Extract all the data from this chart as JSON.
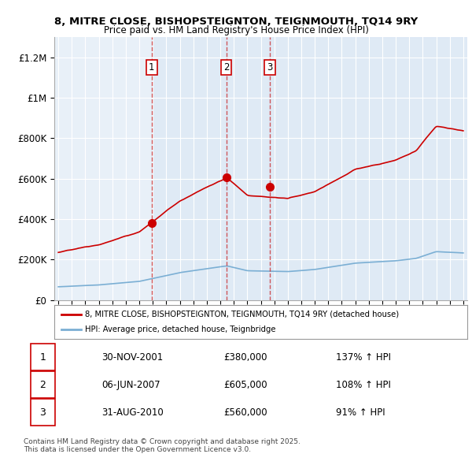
{
  "title": "8, MITRE CLOSE, BISHOPSTEIGNTON, TEIGNMOUTH, TQ14 9RY",
  "subtitle": "Price paid vs. HM Land Registry's House Price Index (HPI)",
  "ylabel_ticks": [
    "£0",
    "£200K",
    "£400K",
    "£600K",
    "£800K",
    "£1M",
    "£1.2M"
  ],
  "ytick_values": [
    0,
    200000,
    400000,
    600000,
    800000,
    1000000,
    1200000
  ],
  "ylim": [
    0,
    1300000
  ],
  "xlim_start": 1994.7,
  "xlim_end": 2025.3,
  "red_line_color": "#cc0000",
  "blue_line_color": "#7bafd4",
  "shade_color": "#ddeeff",
  "grid_color": "#cccccc",
  "bg_color": "#f0f4f8",
  "sale_events": [
    {
      "label": "1",
      "date_x": 2001.92,
      "price": 380000
    },
    {
      "label": "2",
      "date_x": 2007.44,
      "price": 605000
    },
    {
      "label": "3",
      "date_x": 2010.67,
      "price": 560000
    }
  ],
  "table_data": [
    [
      "1",
      "30-NOV-2001",
      "£380,000",
      "137% ↑ HPI"
    ],
    [
      "2",
      "06-JUN-2007",
      "£605,000",
      "108% ↑ HPI"
    ],
    [
      "3",
      "31-AUG-2010",
      "£560,000",
      "91% ↑ HPI"
    ]
  ],
  "footer_text": "Contains HM Land Registry data © Crown copyright and database right 2025.\nThis data is licensed under the Open Government Licence v3.0.",
  "legend_red_label": "8, MITRE CLOSE, BISHOPSTEIGNTON, TEIGNMOUTH, TQ14 9RY (detached house)",
  "legend_blue_label": "HPI: Average price, detached house, Teignbridge"
}
